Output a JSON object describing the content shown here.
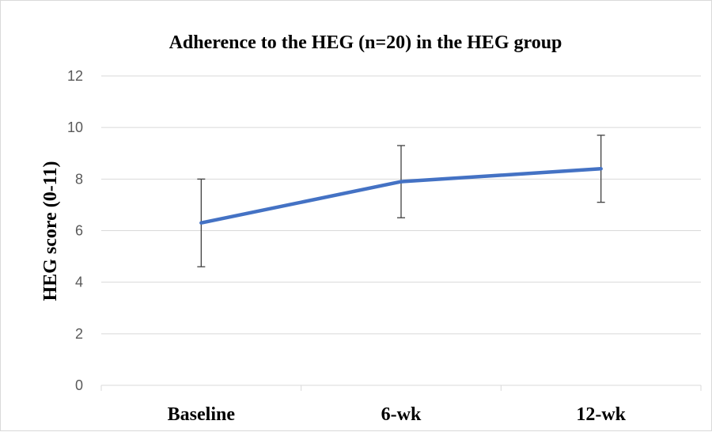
{
  "chart_data": {
    "type": "line",
    "title": "Adherence to the HEG (n=20) in the HEG group",
    "ylabel": "HEG score (0-11)",
    "xlabel": "",
    "categories": [
      "Baseline",
      "6-wk",
      "12-wk"
    ],
    "series": [
      {
        "values": [
          6.3,
          7.9,
          8.4
        ],
        "error_low": [
          4.6,
          6.5,
          7.1
        ],
        "error_high": [
          8.0,
          9.3,
          9.7
        ],
        "color": "#4472C4"
      }
    ],
    "ylim": [
      0,
      12
    ],
    "yticks": [
      0,
      2,
      4,
      6,
      8,
      10,
      12
    ],
    "grid": true,
    "legend": "none"
  }
}
